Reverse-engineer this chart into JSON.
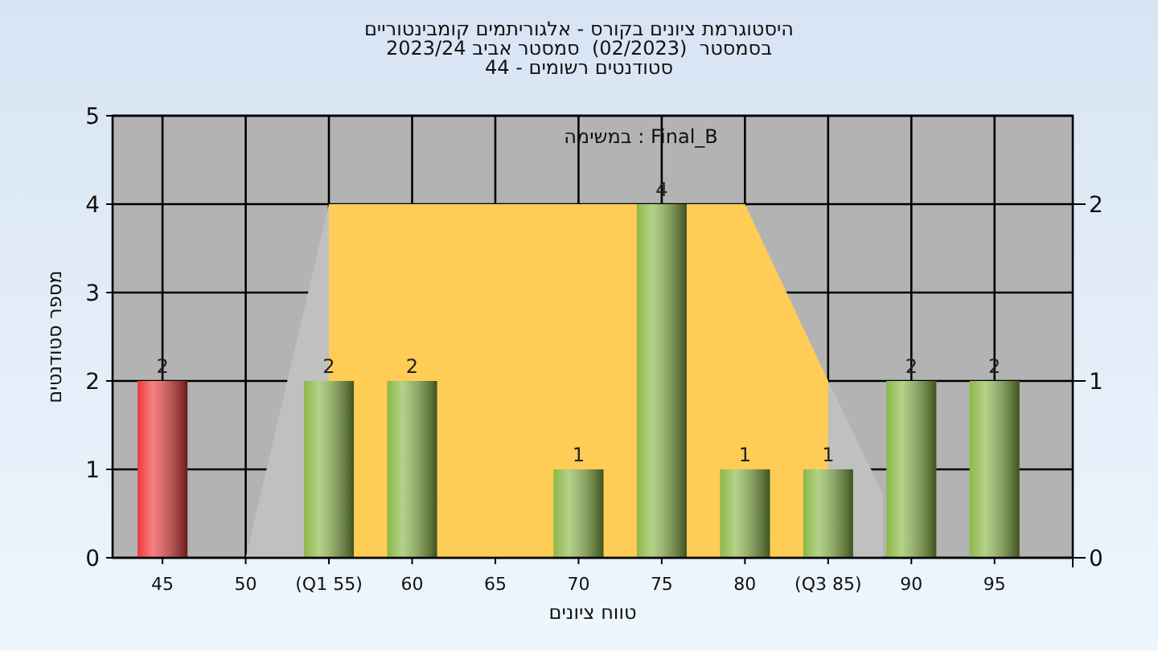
{
  "chart_data": {
    "type": "bar",
    "title": "היסטוגרמת ציונים בקורס - אלגוריתמים קומבינטוריים",
    "subtitle": "בסמסטר  (02/2023)  סמסטר אביב 2023/24\nסטודנטים רשומים - 44",
    "xlabel": "טווח ציונים",
    "ylabel": "מספר סטודנטים",
    "annotations": [
      "במשימה : Final_B"
    ],
    "x": [
      45,
      55,
      60,
      70,
      75,
      80,
      85,
      90,
      95
    ],
    "xlim": [
      42,
      99.7
    ],
    "xticks": [
      45,
      50,
      {
        "value": 55,
        "label": "(Q1 55)"
      },
      60,
      65,
      70,
      75,
      80,
      {
        "value": 85,
        "label": "(Q3 85)"
      },
      90,
      95
    ],
    "ylim": [
      0,
      5
    ],
    "yticks": [
      0,
      1,
      2,
      3,
      4,
      5
    ],
    "y2lim": [
      0,
      2.5
    ],
    "y2ticks": [
      0,
      1,
      2
    ],
    "grid": true,
    "series": [
      {
        "type": "area",
        "axis": "y2",
        "color": "#c0c0c0",
        "x": [
          50,
          55,
          80,
          85,
          88.3
        ],
        "values": [
          0,
          2,
          2,
          1,
          0.36
        ]
      },
      {
        "type": "area",
        "axis": "y2",
        "color": "#ffcc55",
        "x": [
          55,
          80,
          85
        ],
        "values": [
          2,
          2,
          1
        ]
      },
      {
        "values": [
          2,
          2,
          2,
          1,
          4,
          1,
          1,
          2,
          2
        ],
        "value_labels": [
          "2",
          "2",
          "2",
          "1",
          "4",
          "1",
          "1",
          "2",
          "2"
        ],
        "colors": [
          "#f03a3a",
          "#8cb848",
          "#8cb848",
          "#8cb848",
          "#8cb848",
          "#8cb848",
          "#8cb848",
          "#8cb848",
          "#8cb848"
        ]
      }
    ]
  }
}
